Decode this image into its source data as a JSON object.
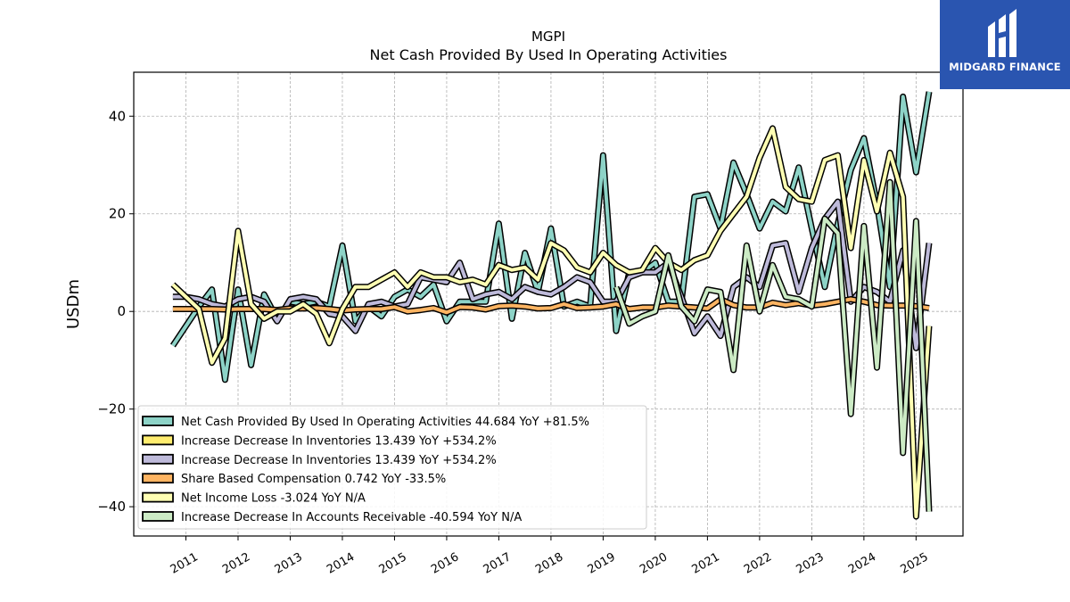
{
  "brand": {
    "logo_text": "MIDGARD FINANCE",
    "logo_color": "#2a55b0"
  },
  "chart_data": {
    "type": "line",
    "title": "MGPI",
    "subtitle": "Net Cash Provided By Used In Operating Activities",
    "xlabel": "",
    "ylabel": "USDm",
    "xlim": [
      2010.0,
      2025.9
    ],
    "ylim": [
      -46,
      49
    ],
    "x_ticks": [
      2011,
      2012,
      2013,
      2014,
      2015,
      2016,
      2017,
      2018,
      2019,
      2020,
      2021,
      2022,
      2023,
      2024,
      2025
    ],
    "y_ticks": [
      -40,
      -20,
      0,
      20,
      40
    ],
    "grid": true,
    "legend_placement": "lower-left",
    "series": [
      {
        "name": "Net Cash Provided By Used In Operating Activities",
        "legend": "Net Cash Provided By Used In Operating Activities  44.684 YoY +81.5%",
        "color": "#8dd3c7",
        "points": [
          [
            2010.75,
            -7
          ],
          [
            2011.0,
            -3
          ],
          [
            2011.25,
            1
          ],
          [
            2011.5,
            4.5
          ],
          [
            2011.75,
            -14
          ],
          [
            2012.0,
            4.5
          ],
          [
            2012.25,
            -11
          ],
          [
            2012.5,
            3.5
          ],
          [
            2012.75,
            -1.5
          ],
          [
            2013.0,
            2
          ],
          [
            2013.25,
            1.5
          ],
          [
            2013.5,
            2
          ],
          [
            2013.75,
            1
          ],
          [
            2014.0,
            13.5
          ],
          [
            2014.25,
            -2
          ],
          [
            2014.5,
            1
          ],
          [
            2014.75,
            -1
          ],
          [
            2015.0,
            3
          ],
          [
            2015.25,
            4.5
          ],
          [
            2015.5,
            3
          ],
          [
            2015.75,
            5.5
          ],
          [
            2016.0,
            -2
          ],
          [
            2016.25,
            2
          ],
          [
            2016.5,
            2
          ],
          [
            2016.75,
            2
          ],
          [
            2017.0,
            18
          ],
          [
            2017.25,
            -1.5
          ],
          [
            2017.5,
            12
          ],
          [
            2017.75,
            4
          ],
          [
            2018.0,
            17
          ],
          [
            2018.25,
            1
          ],
          [
            2018.5,
            2
          ],
          [
            2018.75,
            1
          ],
          [
            2019.0,
            32
          ],
          [
            2019.25,
            -4
          ],
          [
            2019.5,
            8
          ],
          [
            2019.75,
            8
          ],
          [
            2020.0,
            10
          ],
          [
            2020.25,
            2
          ],
          [
            2020.5,
            2
          ],
          [
            2020.75,
            23.5
          ],
          [
            2021.0,
            24
          ],
          [
            2021.25,
            17
          ],
          [
            2021.5,
            30.5
          ],
          [
            2021.75,
            24
          ],
          [
            2022.0,
            17
          ],
          [
            2022.25,
            22.5
          ],
          [
            2022.5,
            20.5
          ],
          [
            2022.75,
            29.5
          ],
          [
            2023.0,
            17
          ],
          [
            2023.25,
            5
          ],
          [
            2023.5,
            18
          ],
          [
            2023.75,
            29
          ],
          [
            2024.0,
            35.5
          ],
          [
            2024.25,
            22
          ],
          [
            2024.5,
            5
          ],
          [
            2024.75,
            44
          ],
          [
            2025.0,
            28.5
          ],
          [
            2025.25,
            45
          ]
        ]
      },
      {
        "name": "Increase Decrease In Inventories",
        "legend": "Increase Decrease In Inventories  13.439 YoY +534.2%",
        "color": "#ffed6f",
        "points": []
      },
      {
        "name": "Increase Decrease In Inventories",
        "legend": "Increase Decrease In Inventories  13.439 YoY +534.2%",
        "color": "#bebada",
        "points": [
          [
            2010.75,
            3
          ],
          [
            2011.0,
            3
          ],
          [
            2011.25,
            2.5
          ],
          [
            2011.5,
            1.5
          ],
          [
            2011.75,
            1
          ],
          [
            2012.0,
            2.5
          ],
          [
            2012.25,
            3
          ],
          [
            2012.5,
            2
          ],
          [
            2012.75,
            -2
          ],
          [
            2013.0,
            2.5
          ],
          [
            2013.25,
            3
          ],
          [
            2013.5,
            2.5
          ],
          [
            2013.75,
            -0.5
          ],
          [
            2014.0,
            -1
          ],
          [
            2014.25,
            -4
          ],
          [
            2014.5,
            1.5
          ],
          [
            2014.75,
            2
          ],
          [
            2015.0,
            1
          ],
          [
            2015.25,
            1.5
          ],
          [
            2015.5,
            7
          ],
          [
            2015.75,
            6.5
          ],
          [
            2016.0,
            6
          ],
          [
            2016.25,
            10
          ],
          [
            2016.5,
            2.5
          ],
          [
            2016.75,
            3.5
          ],
          [
            2017.0,
            4
          ],
          [
            2017.25,
            2.5
          ],
          [
            2017.5,
            5
          ],
          [
            2017.75,
            4
          ],
          [
            2018.0,
            3.5
          ],
          [
            2018.25,
            5
          ],
          [
            2018.5,
            7
          ],
          [
            2018.75,
            6
          ],
          [
            2019.0,
            2
          ],
          [
            2019.25,
            2
          ],
          [
            2019.5,
            7
          ],
          [
            2019.75,
            8
          ],
          [
            2020.0,
            8
          ],
          [
            2020.25,
            10
          ],
          [
            2020.5,
            3
          ],
          [
            2020.75,
            -4.5
          ],
          [
            2021.0,
            -1
          ],
          [
            2021.25,
            -5
          ],
          [
            2021.5,
            5
          ],
          [
            2021.75,
            7
          ],
          [
            2022.0,
            5
          ],
          [
            2022.25,
            13.5
          ],
          [
            2022.5,
            14
          ],
          [
            2022.75,
            4
          ],
          [
            2023.0,
            13
          ],
          [
            2023.25,
            19
          ],
          [
            2023.5,
            22.5
          ],
          [
            2023.75,
            2
          ],
          [
            2024.0,
            5
          ],
          [
            2024.25,
            4
          ],
          [
            2024.5,
            2
          ],
          [
            2024.75,
            12.5
          ],
          [
            2025.0,
            -7.5
          ],
          [
            2025.25,
            14
          ]
        ]
      },
      {
        "name": "Share Based Compensation",
        "legend": "Share Based Compensation  0.742 YoY -33.5%",
        "color": "#fdb462",
        "points": [
          [
            2010.75,
            0.5
          ],
          [
            2011.0,
            0.5
          ],
          [
            2011.25,
            0.5
          ],
          [
            2011.5,
            0.5
          ],
          [
            2011.75,
            0.4
          ],
          [
            2012.0,
            0.5
          ],
          [
            2012.25,
            0.5
          ],
          [
            2012.5,
            0.5
          ],
          [
            2012.75,
            0.3
          ],
          [
            2013.0,
            0.6
          ],
          [
            2013.25,
            0.6
          ],
          [
            2013.5,
            0.7
          ],
          [
            2013.75,
            0.5
          ],
          [
            2014.0,
            0.2
          ],
          [
            2014.25,
            0.4
          ],
          [
            2014.5,
            0.5
          ],
          [
            2014.75,
            0.5
          ],
          [
            2015.0,
            0.9
          ],
          [
            2015.25,
            0
          ],
          [
            2015.5,
            0.3
          ],
          [
            2015.75,
            0.7
          ],
          [
            2016.0,
            -0.2
          ],
          [
            2016.25,
            0.9
          ],
          [
            2016.5,
            0.8
          ],
          [
            2016.75,
            0.4
          ],
          [
            2017.0,
            1.1
          ],
          [
            2017.25,
            1.2
          ],
          [
            2017.5,
            1
          ],
          [
            2017.75,
            0.6
          ],
          [
            2018.0,
            0.7
          ],
          [
            2018.25,
            1.5
          ],
          [
            2018.5,
            0.7
          ],
          [
            2018.75,
            0.8
          ],
          [
            2019.0,
            1
          ],
          [
            2019.25,
            1.5
          ],
          [
            2019.5,
            0.5
          ],
          [
            2019.75,
            0.8
          ],
          [
            2020.0,
            0.8
          ],
          [
            2020.25,
            1.2
          ],
          [
            2020.5,
            1
          ],
          [
            2020.75,
            0.8
          ],
          [
            2021.0,
            0.6
          ],
          [
            2021.25,
            2.5
          ],
          [
            2021.5,
            1.3
          ],
          [
            2021.75,
            0.8
          ],
          [
            2022.0,
            0.8
          ],
          [
            2022.25,
            1.8
          ],
          [
            2022.5,
            1.3
          ],
          [
            2022.75,
            1.7
          ],
          [
            2023.0,
            1.2
          ],
          [
            2023.25,
            1.5
          ],
          [
            2023.5,
            2
          ],
          [
            2023.75,
            2.5
          ],
          [
            2024.0,
            2
          ],
          [
            2024.25,
            1.3
          ],
          [
            2024.5,
            1.2
          ],
          [
            2024.75,
            1.2
          ],
          [
            2025.0,
            1.1
          ],
          [
            2025.25,
            0.7
          ]
        ]
      },
      {
        "name": "Net Income Loss",
        "legend": "Net Income Loss  -3.024 YoY N/A",
        "color": "#ffffb3",
        "points": [
          [
            2010.75,
            5.5
          ],
          [
            2011.0,
            3
          ],
          [
            2011.25,
            0.5
          ],
          [
            2011.5,
            -10.5
          ],
          [
            2011.75,
            -5.5
          ],
          [
            2012.0,
            16.5
          ],
          [
            2012.25,
            1.5
          ],
          [
            2012.5,
            -1.5
          ],
          [
            2012.75,
            0
          ],
          [
            2013.0,
            0
          ],
          [
            2013.25,
            1.5
          ],
          [
            2013.5,
            -0.5
          ],
          [
            2013.75,
            -6.5
          ],
          [
            2014.0,
            0.5
          ],
          [
            2014.25,
            5
          ],
          [
            2014.5,
            5
          ],
          [
            2014.75,
            6.5
          ],
          [
            2015.0,
            8
          ],
          [
            2015.25,
            5
          ],
          [
            2015.5,
            8
          ],
          [
            2015.75,
            7
          ],
          [
            2016.0,
            7
          ],
          [
            2016.25,
            6
          ],
          [
            2016.5,
            6.5
          ],
          [
            2016.75,
            5.5
          ],
          [
            2017.0,
            9.5
          ],
          [
            2017.25,
            8.5
          ],
          [
            2017.5,
            9
          ],
          [
            2017.75,
            6.5
          ],
          [
            2018.0,
            14
          ],
          [
            2018.25,
            12.5
          ],
          [
            2018.5,
            9
          ],
          [
            2018.75,
            8
          ],
          [
            2019.0,
            12
          ],
          [
            2019.25,
            9.5
          ],
          [
            2019.5,
            8
          ],
          [
            2019.75,
            8.5
          ],
          [
            2020.0,
            13
          ],
          [
            2020.25,
            10
          ],
          [
            2020.5,
            8.5
          ],
          [
            2020.75,
            10.5
          ],
          [
            2021.0,
            11.5
          ],
          [
            2021.25,
            16.5
          ],
          [
            2021.5,
            20
          ],
          [
            2021.75,
            23.5
          ],
          [
            2022.0,
            31.5
          ],
          [
            2022.25,
            37.5
          ],
          [
            2022.5,
            25.5
          ],
          [
            2022.75,
            23
          ],
          [
            2023.0,
            22.5
          ],
          [
            2023.25,
            31
          ],
          [
            2023.5,
            32
          ],
          [
            2023.75,
            13
          ],
          [
            2024.0,
            31
          ],
          [
            2024.25,
            20.5
          ],
          [
            2024.5,
            32.5
          ],
          [
            2024.75,
            23.5
          ],
          [
            2025.0,
            -42
          ],
          [
            2025.25,
            -3
          ]
        ]
      },
      {
        "name": "Increase Decrease In Accounts Receivable",
        "legend": "Increase Decrease In Accounts Receivable  -40.594 YoY N/A",
        "color": "#ccebc5",
        "points": [
          [
            2019.25,
            5
          ],
          [
            2019.5,
            -2.5
          ],
          [
            2019.75,
            -1
          ],
          [
            2020.0,
            0
          ],
          [
            2020.25,
            11.5
          ],
          [
            2020.5,
            1
          ],
          [
            2020.75,
            -2
          ],
          [
            2021.0,
            4.5
          ],
          [
            2021.25,
            4
          ],
          [
            2021.5,
            -12
          ],
          [
            2021.75,
            13.5
          ],
          [
            2022.0,
            0
          ],
          [
            2022.25,
            9.5
          ],
          [
            2022.5,
            3
          ],
          [
            2022.75,
            2.5
          ],
          [
            2023.0,
            1
          ],
          [
            2023.25,
            19
          ],
          [
            2023.5,
            16
          ],
          [
            2023.75,
            -21
          ],
          [
            2024.0,
            17.5
          ],
          [
            2024.25,
            -11.5
          ],
          [
            2024.5,
            26.5
          ],
          [
            2024.75,
            -29
          ],
          [
            2025.0,
            18.5
          ],
          [
            2025.25,
            -41
          ]
        ]
      }
    ]
  }
}
